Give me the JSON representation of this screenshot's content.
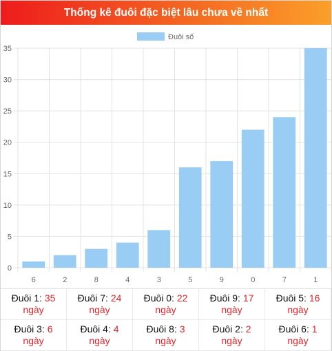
{
  "header": {
    "title": "Thống kê đuôi đặc biệt lâu chưa về nhất"
  },
  "colors": {
    "bar": "#99cdf3",
    "grid": "#e3e3e3",
    "tick_text": "#666666",
    "accent": "#e0262b"
  },
  "chart_data": {
    "type": "bar",
    "categories": [
      "6",
      "2",
      "8",
      "4",
      "3",
      "5",
      "9",
      "0",
      "7",
      "1"
    ],
    "series": [
      {
        "name": "Đuôi số",
        "values": [
          1,
          2,
          3,
          4,
          6,
          16,
          17,
          22,
          24,
          35
        ]
      }
    ],
    "ylim": [
      0,
      35
    ],
    "yticks": [
      0,
      5,
      10,
      15,
      20,
      25,
      30,
      35
    ],
    "grid": true,
    "legend": "top-center"
  },
  "stats": {
    "prefix": "Đuôi",
    "unit": "ngày",
    "items": [
      {
        "digit": "1",
        "days": "35"
      },
      {
        "digit": "7",
        "days": "24"
      },
      {
        "digit": "0",
        "days": "22"
      },
      {
        "digit": "9",
        "days": "17"
      },
      {
        "digit": "5",
        "days": "16"
      },
      {
        "digit": "3",
        "days": "6"
      },
      {
        "digit": "4",
        "days": "4"
      },
      {
        "digit": "8",
        "days": "3"
      },
      {
        "digit": "2",
        "days": "2"
      },
      {
        "digit": "6",
        "days": "1"
      }
    ]
  }
}
